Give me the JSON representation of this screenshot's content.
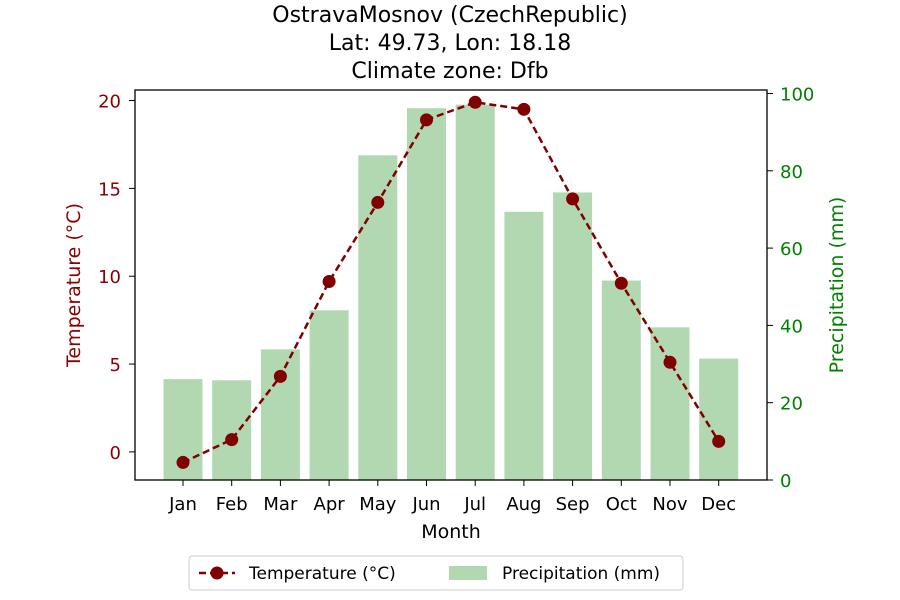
{
  "chart_data": {
    "type": "bar",
    "title_lines": [
      "OstravaMosnov (CzechRepublic)",
      "Lat: 49.73, Lon: 18.18",
      "Climate zone: Dfb"
    ],
    "xlabel": "Month",
    "ylabel_left": "Temperature (°C)",
    "ylabel_right": "Precipitation (mm)",
    "categories": [
      "Jan",
      "Feb",
      "Mar",
      "Apr",
      "May",
      "Jun",
      "Jul",
      "Aug",
      "Sep",
      "Oct",
      "Nov",
      "Dec"
    ],
    "y_left": {
      "lim": [
        -1.6,
        20.6
      ],
      "ticks": [
        0,
        5,
        10,
        15,
        20
      ]
    },
    "y_right": {
      "lim": [
        0,
        100.9
      ],
      "ticks": [
        0,
        20,
        40,
        60,
        80,
        100
      ]
    },
    "series": [
      {
        "name": "Temperature (°C)",
        "kind": "line",
        "axis": "left",
        "color": "#800000",
        "values": [
          -0.6,
          0.7,
          4.3,
          9.7,
          14.2,
          18.9,
          19.9,
          19.5,
          14.4,
          9.6,
          5.1,
          0.6
        ]
      },
      {
        "name": "Precipitation (mm)",
        "kind": "bar",
        "axis": "right",
        "color": "#b2d8b2",
        "values": [
          26.1,
          25.8,
          33.8,
          43.9,
          84.0,
          96.2,
          97.1,
          69.4,
          74.4,
          51.6,
          39.5,
          31.4
        ]
      }
    ],
    "grid": false,
    "legend_position": "bottom-center",
    "colors": {
      "temperature": "#800000",
      "precipitation": "#b2d8b2",
      "left_axis": "#8b0000",
      "right_axis": "#008000"
    }
  }
}
